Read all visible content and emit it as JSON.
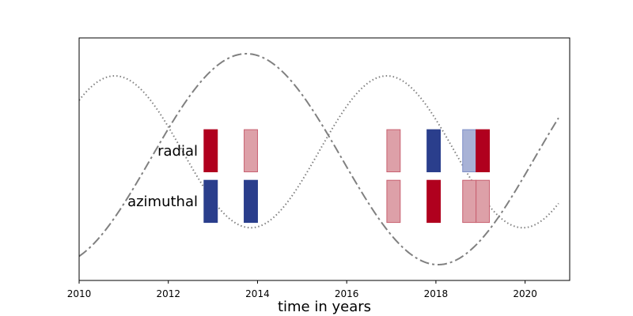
{
  "chart_data": {
    "type": "bar",
    "title": "",
    "xlabel": "time in years",
    "ylabel": "",
    "xlim": [
      2010,
      2021
    ],
    "ylim": [
      -1.15,
      1.15
    ],
    "grid": false,
    "x_ticks": [
      2010,
      2012,
      2014,
      2016,
      2018,
      2020
    ],
    "y_ticks": [],
    "rows": [
      {
        "label": "radial",
        "y_center": 0.08
      },
      {
        "label": "azimuthal",
        "y_center": -0.4
      }
    ],
    "colors": {
      "dark_red": "#b0001e",
      "light_red": "#dda0a8",
      "dark_blue": "#2a3e8c",
      "light_blue": "#a8b2d6",
      "curve": "#808080"
    },
    "bar_height": 0.4,
    "bars": [
      {
        "row": "radial",
        "x": 2012.95,
        "color": "dark_red"
      },
      {
        "row": "radial",
        "x": 2013.85,
        "color": "light_red"
      },
      {
        "row": "radial",
        "x": 2017.05,
        "color": "light_red"
      },
      {
        "row": "radial",
        "x": 2017.95,
        "color": "dark_blue"
      },
      {
        "row": "radial",
        "x": 2018.75,
        "color": "light_blue"
      },
      {
        "row": "radial",
        "x": 2019.05,
        "color": "dark_red"
      },
      {
        "row": "azimuthal",
        "x": 2012.95,
        "color": "dark_blue"
      },
      {
        "row": "azimuthal",
        "x": 2013.85,
        "color": "dark_blue"
      },
      {
        "row": "azimuthal",
        "x": 2017.05,
        "color": "light_red"
      },
      {
        "row": "azimuthal",
        "x": 2017.95,
        "color": "dark_red"
      },
      {
        "row": "azimuthal",
        "x": 2018.75,
        "color": "light_red"
      },
      {
        "row": "azimuthal",
        "x": 2019.05,
        "color": "light_red"
      }
    ],
    "bar_width_years": 0.3,
    "curves": [
      {
        "style": "dashdot",
        "period_years": 8.6,
        "peak_year": 2013.75,
        "amplitude": 1.0,
        "x_start": 2010,
        "x_end": 2020.75
      },
      {
        "style": "dotted",
        "period_years": 6.1,
        "peak_year": 2010.8,
        "amplitude": 0.72,
        "offset": 0.07,
        "x_start": 2010,
        "x_end": 2020.75
      }
    ]
  }
}
